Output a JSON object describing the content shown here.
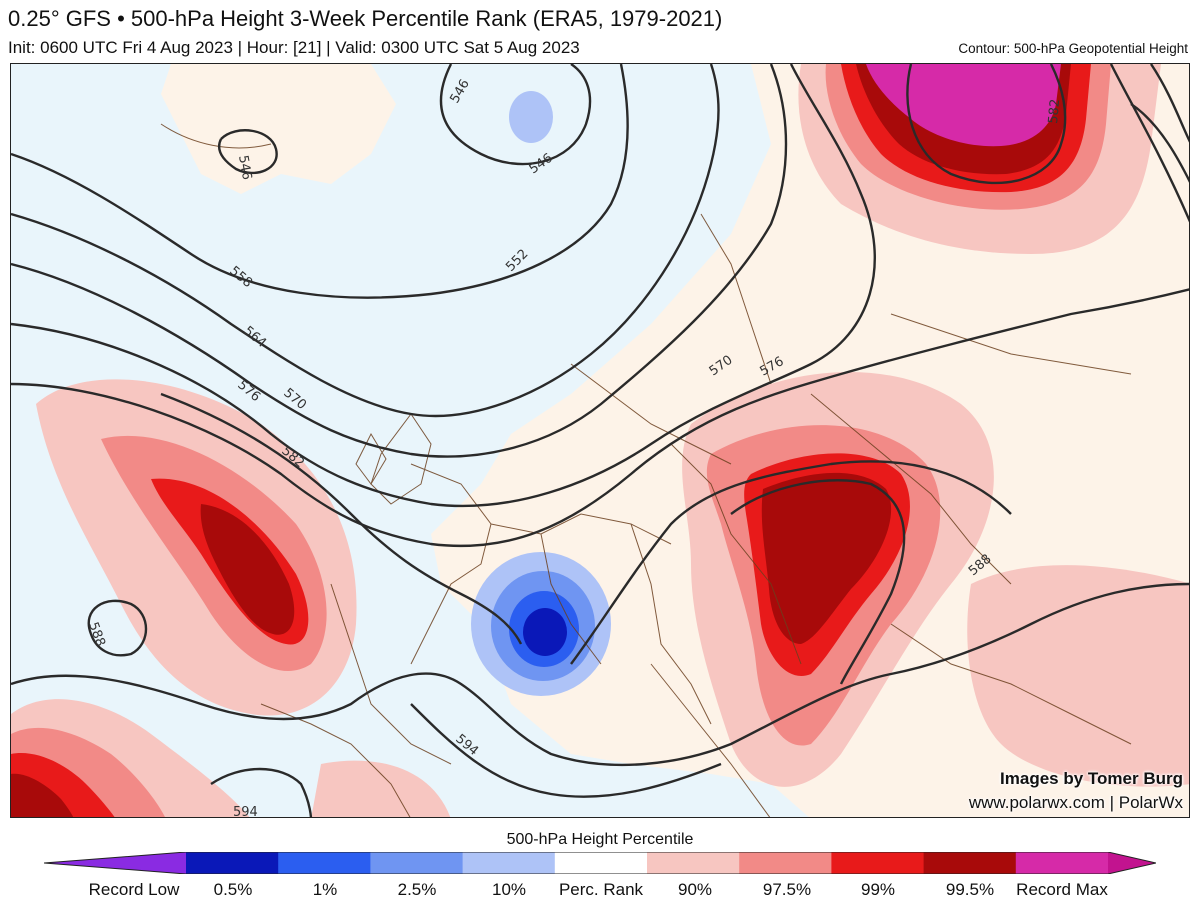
{
  "header": {
    "title": "0.25° GFS • 500-hPa Height 3-Week Percentile Rank (ERA5, 1979-2021)",
    "subtitle": "Init: 0600 UTC Fri 4 Aug 2023 | Hour: [21] | Valid: 0300 UTC Sat 5 Aug 2023",
    "contour_note": "Contour: 500-hPa Geopotential Height"
  },
  "map": {
    "contour_labels": [
      "546",
      "546",
      "546",
      "552",
      "558",
      "564",
      "570",
      "576",
      "576",
      "570",
      "582",
      "582",
      "588",
      "588",
      "594",
      "594"
    ],
    "credit_line1": "Images by Tomer Burg",
    "credit_line2": "www.polarwx.com | PolarWx"
  },
  "colorbar": {
    "title": "500-hPa Height Percentile",
    "labels": [
      "Record Low",
      "0.5%",
      "1%",
      "2.5%",
      "10%",
      "Perc. Rank",
      "90%",
      "97.5%",
      "99%",
      "99.5%",
      "Record Max"
    ],
    "colors": [
      "#8a2be2",
      "#0a18b8",
      "#2b5ef0",
      "#6f95f2",
      "#aec3f7",
      "#ffffff",
      "#f7c6c1",
      "#f28a87",
      "#e81a1a",
      "#a80a0a",
      "#d62aa8",
      "#c2138f"
    ]
  },
  "colors": {
    "ocean_neutral": "#e9f5fb",
    "land_neutral": "#fdf3e8",
    "contour": "#2a2a2a",
    "border": "#6b3f1f"
  }
}
